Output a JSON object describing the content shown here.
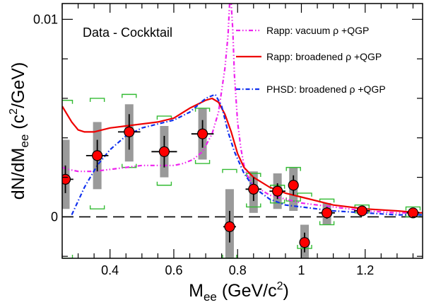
{
  "chart_data": {
    "type": "scatter",
    "annotation": "Data - Cockktail",
    "xlabel": {
      "main": "M",
      "sub": "ee",
      "unit_pre": " (GeV/c",
      "sup": "2",
      "unit_post": ")"
    },
    "ylabel": {
      "main": "dN/dM",
      "sub": "ee",
      "unit_pre": " (c",
      "sup": "2",
      "unit_post": "/GeV)"
    },
    "xlim": [
      0.25,
      1.38
    ],
    "ylim": [
      -0.0021,
      0.0108
    ],
    "xticks": [
      0.4,
      0.6,
      0.8,
      1.0,
      1.2
    ],
    "xtick_labels": [
      "0.4",
      "0.6",
      "0.8",
      "1",
      "1.2"
    ],
    "yticks": [
      0,
      0.01
    ],
    "ytick_labels": [
      "0",
      "0.01"
    ],
    "zero_line": 0,
    "data": {
      "name": "Data - Cocktail",
      "color": "#ff0000",
      "x": [
        0.26,
        0.36,
        0.46,
        0.57,
        0.69,
        0.775,
        0.85,
        0.925,
        0.975,
        1.01,
        1.08,
        1.19,
        1.35
      ],
      "y": [
        0.0019,
        0.0031,
        0.0043,
        0.0033,
        0.0042,
        -0.0005,
        0.0014,
        0.0013,
        0.0016,
        -0.0013,
        0.0002,
        0.0003,
        0.0002
      ],
      "xerr": [
        0.025,
        0.035,
        0.035,
        0.04,
        0.035,
        0.02,
        0.025,
        0.025,
        0.0,
        0.015,
        0.025,
        0.025,
        0.02
      ],
      "yerr": [
        0.0007,
        0.0008,
        0.0009,
        0.0008,
        0.0007,
        0.0008,
        0.0006,
        0.0004,
        0.0005,
        0.0005,
        0.0003,
        0.0002,
        0.0002
      ],
      "sys_box": [
        [
          0.0004,
          0.0039
        ],
        [
          0.0014,
          0.0048
        ],
        [
          0.0028,
          0.0057
        ],
        [
          0.002,
          0.0046
        ],
        [
          0.0029,
          0.0055
        ],
        [
          -0.0022,
          0.0014
        ],
        [
          0.0002,
          0.0023
        ],
        [
          0.0004,
          0.0022
        ],
        [
          0.0003,
          0.0025
        ],
        [
          -0.0023,
          -0.0004
        ],
        [
          -0.0004,
          0.0007
        ],
        [
          0.0002,
          0.0004
        ],
        [
          0.0001,
          0.0003
        ]
      ],
      "model_unc": [
        [
          -0.0021,
          0.0059
        ],
        [
          0.0004,
          0.006
        ],
        [
          0.0025,
          0.0062
        ],
        [
          0.0016,
          0.0051
        ],
        [
          0.0027,
          0.0055
        ],
        [
          -0.0021,
          0.0024
        ],
        [
          0.0005,
          0.0022
        ],
        [
          0.0007,
          0.0016
        ],
        [
          0.0008,
          0.0025
        ],
        [
          -0.0016,
          0.0012
        ],
        [
          -0.0004,
          0.0009
        ],
        [
          0.0002,
          0.0006
        ],
        [
          0.0,
          0.0005
        ]
      ]
    },
    "series": [
      {
        "name": "Rapp: vacuum ρ +QGP",
        "color": "#ee22ee",
        "style": "dash-dot-dot",
        "x": [
          0.25,
          0.27,
          0.3,
          0.35,
          0.4,
          0.45,
          0.5,
          0.55,
          0.6,
          0.63,
          0.66,
          0.69,
          0.72,
          0.74,
          0.76,
          0.77,
          0.775,
          0.78,
          0.785,
          0.79,
          0.8,
          0.81,
          0.82,
          0.83,
          0.85,
          0.88,
          0.9,
          0.95,
          1.0,
          1.05,
          1.1,
          1.2,
          1.3,
          1.38
        ],
        "y": [
          0.0025,
          0.0024,
          0.0023,
          0.0023,
          0.0024,
          0.0025,
          0.0026,
          0.0026,
          0.0026,
          0.0027,
          0.0029,
          0.0033,
          0.0042,
          0.0053,
          0.0075,
          0.0092,
          0.0108,
          0.0108,
          0.0094,
          0.0072,
          0.0048,
          0.0035,
          0.0026,
          0.0021,
          0.0016,
          0.0013,
          0.0011,
          0.0009,
          0.0007,
          0.0006,
          0.0005,
          0.0003,
          0.0002,
          0.0002
        ]
      },
      {
        "name": "Rapp: broadened ρ +QGP",
        "color": "#ee0000",
        "style": "solid",
        "x": [
          0.25,
          0.28,
          0.3,
          0.32,
          0.35,
          0.4,
          0.45,
          0.5,
          0.55,
          0.6,
          0.65,
          0.7,
          0.72,
          0.74,
          0.76,
          0.78,
          0.8,
          0.82,
          0.85,
          0.9,
          0.95,
          1.0,
          1.05,
          1.1,
          1.2,
          1.3,
          1.38
        ],
        "y": [
          0.0056,
          0.0048,
          0.0044,
          0.0043,
          0.0043,
          0.0045,
          0.0046,
          0.0047,
          0.0048,
          0.005,
          0.0055,
          0.0059,
          0.006,
          0.0058,
          0.0052,
          0.0043,
          0.0032,
          0.0025,
          0.002,
          0.0015,
          0.0012,
          0.001,
          0.0008,
          0.0006,
          0.0004,
          0.0003,
          0.0002
        ]
      },
      {
        "name": "PHSD: broadened ρ +QGP",
        "color": "#1030ee",
        "style": "dash-dot",
        "x": [
          0.28,
          0.32,
          0.36,
          0.4,
          0.45,
          0.5,
          0.55,
          0.6,
          0.65,
          0.7,
          0.73,
          0.75,
          0.77,
          0.79,
          0.82,
          0.85,
          0.9,
          0.95,
          1.0,
          1.05,
          1.1,
          1.2,
          1.3,
          1.38
        ],
        "y": [
          0.0001,
          0.0015,
          0.0026,
          0.0034,
          0.0041,
          0.0045,
          0.0047,
          0.0049,
          0.0053,
          0.006,
          0.0062,
          0.0056,
          0.0043,
          0.0033,
          0.0022,
          0.0015,
          0.0009,
          0.0006,
          0.0005,
          0.0004,
          0.0003,
          0.0002,
          0.0001,
          0.0001
        ]
      }
    ],
    "legend_placement": "top-right",
    "grid": false
  }
}
